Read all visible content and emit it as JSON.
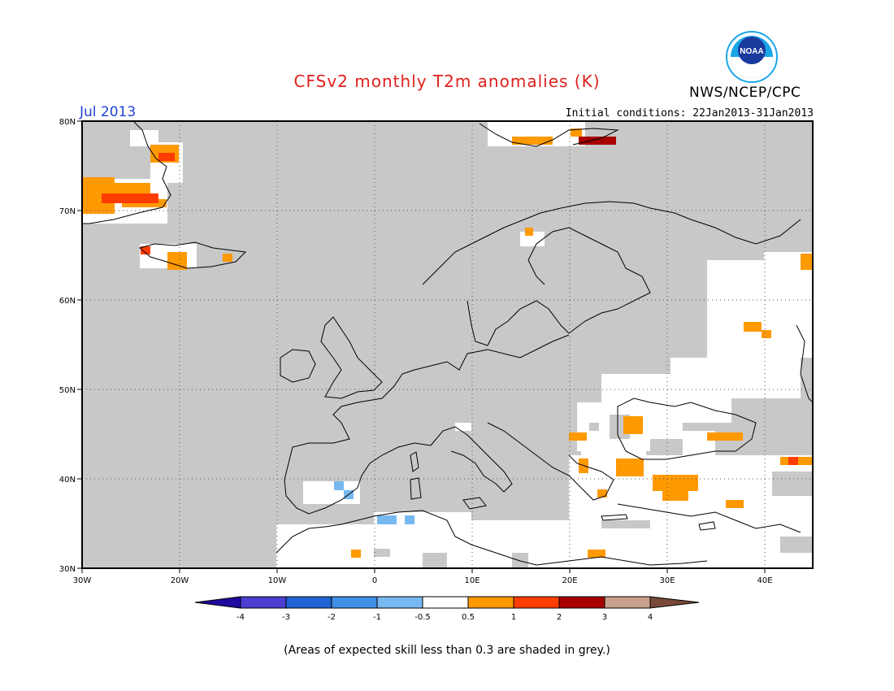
{
  "header": {
    "title": "CFSv2 monthly T2m anomalies (K)",
    "agency": "NWS/NCEP/CPC",
    "month": "Jul 2013",
    "initial_conditions": "Initial conditions: 22Jan2013-31Jan2013",
    "logo_text": "NOAA"
  },
  "map": {
    "lon_labels": [
      "30W",
      "20W",
      "10W",
      "0",
      "10E",
      "20E",
      "30E",
      "40E"
    ],
    "lat_labels": [
      "80N",
      "70N",
      "60N",
      "50N",
      "40N",
      "30N"
    ],
    "lon_range": [
      -30,
      45
    ],
    "lat_range": [
      30,
      80
    ],
    "grey_color": "#c8c8c8"
  },
  "legend": {
    "tick_labels": [
      "-4",
      "-3",
      "-2",
      "-1",
      "-0.5",
      "0.5",
      "1",
      "2",
      "3",
      "4"
    ],
    "colors": [
      "#1e0a9e",
      "#4b3ed1",
      "#1f64d2",
      "#3f8fe6",
      "#78b8f0",
      "#ffffff",
      "#ff9900",
      "#ff3c00",
      "#a80000",
      "#c8a08c",
      "#784838"
    ]
  },
  "footnote": "(Areas of expected skill less than 0.3 are shaded in grey.)"
}
